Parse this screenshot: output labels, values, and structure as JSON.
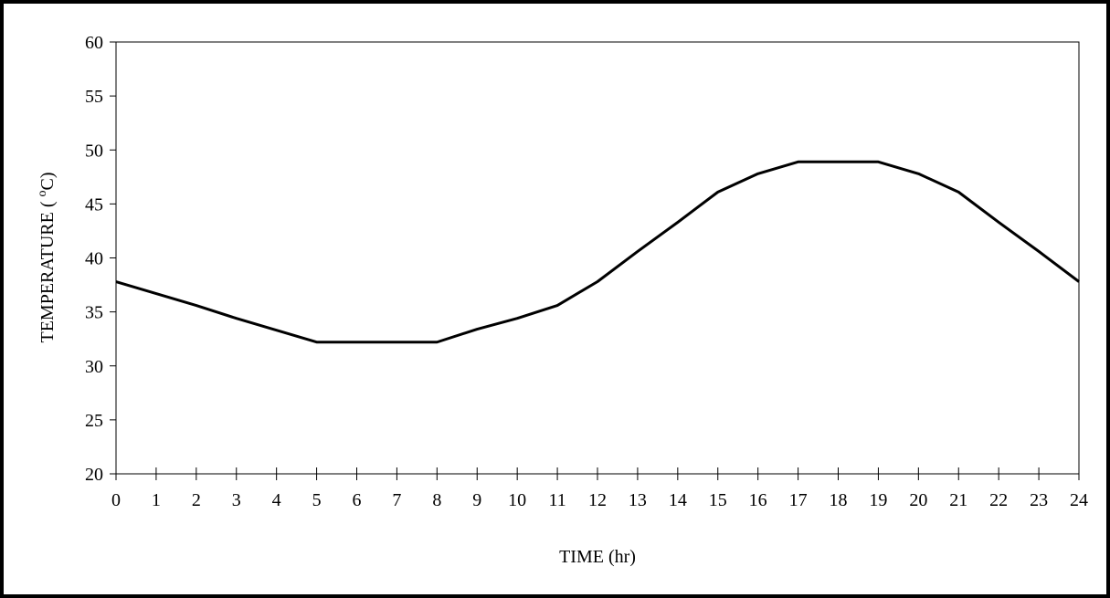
{
  "chart_data": {
    "type": "line",
    "title": "",
    "xlabel": "TIME (hr)",
    "ylabel_main": "TEMPERATURE ( ",
    "ylabel_sup": "o",
    "ylabel_end": "C)",
    "xlim": [
      0,
      24
    ],
    "ylim": [
      20,
      60
    ],
    "x_ticks": [
      0,
      1,
      2,
      3,
      4,
      5,
      6,
      7,
      8,
      9,
      10,
      11,
      12,
      13,
      14,
      15,
      16,
      17,
      18,
      19,
      20,
      21,
      22,
      23,
      24
    ],
    "y_ticks": [
      20,
      25,
      30,
      35,
      40,
      45,
      50,
      55,
      60
    ],
    "grid": false,
    "legend": "none",
    "line_color": "#000000",
    "series": [
      {
        "x": [
          0,
          1,
          2,
          3,
          4,
          5,
          6,
          7,
          8,
          9,
          10,
          11,
          12,
          13,
          14,
          15,
          16,
          17,
          18,
          19,
          20,
          21,
          22,
          23,
          24
        ],
        "y": [
          37.8,
          36.7,
          35.6,
          34.4,
          33.3,
          32.2,
          32.2,
          32.2,
          32.2,
          33.4,
          34.4,
          35.6,
          37.8,
          40.6,
          43.3,
          46.1,
          47.8,
          48.9,
          48.9,
          48.9,
          47.8,
          46.1,
          43.3,
          40.6,
          37.8
        ]
      }
    ]
  }
}
